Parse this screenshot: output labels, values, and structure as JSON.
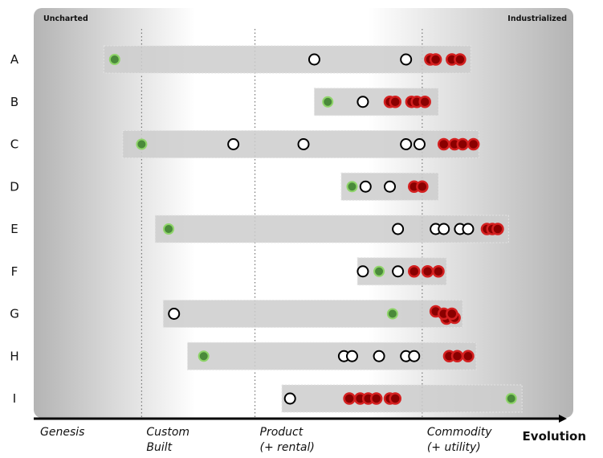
{
  "corner_labels": {
    "left": "Uncharted",
    "right": "Industrialized"
  },
  "axis": {
    "title": "Evolution",
    "stages": [
      {
        "name": "genesis",
        "lines": [
          "Genesis"
        ],
        "position": 0.0
      },
      {
        "name": "custom-built",
        "lines": [
          "Custom",
          "Built"
        ],
        "position": 0.2
      },
      {
        "name": "product",
        "lines": [
          "Product",
          "(+ rental)"
        ],
        "position": 0.41
      },
      {
        "name": "commodity",
        "lines": [
          "Commodity",
          "(+ utility)"
        ],
        "position": 0.72
      }
    ]
  },
  "colors": {
    "white": "#ffffff",
    "green": "#4a8a3a",
    "green_ring": "#8fd46a",
    "red": "#d42020",
    "red_dark": "#8a0000"
  },
  "rows": [
    {
      "label": "A",
      "range": [
        0.13,
        0.81
      ],
      "points": [
        {
          "x": 0.15,
          "type": "green"
        },
        {
          "x": 0.52,
          "type": "white"
        },
        {
          "x": 0.69,
          "type": "white"
        },
        {
          "x": 0.735,
          "type": "red"
        },
        {
          "x": 0.745,
          "type": "red"
        },
        {
          "x": 0.775,
          "type": "red"
        },
        {
          "x": 0.79,
          "type": "red"
        }
      ]
    },
    {
      "label": "B",
      "range": [
        0.52,
        0.75
      ],
      "points": [
        {
          "x": 0.545,
          "type": "green"
        },
        {
          "x": 0.61,
          "type": "white"
        },
        {
          "x": 0.66,
          "type": "red"
        },
        {
          "x": 0.67,
          "type": "red"
        },
        {
          "x": 0.7,
          "type": "red"
        },
        {
          "x": 0.71,
          "type": "red"
        },
        {
          "x": 0.725,
          "type": "red"
        }
      ]
    },
    {
      "label": "C",
      "range": [
        0.165,
        0.825
      ],
      "points": [
        {
          "x": 0.2,
          "type": "green"
        },
        {
          "x": 0.37,
          "type": "white"
        },
        {
          "x": 0.5,
          "type": "white"
        },
        {
          "x": 0.69,
          "type": "white"
        },
        {
          "x": 0.715,
          "type": "white"
        },
        {
          "x": 0.76,
          "type": "red"
        },
        {
          "x": 0.78,
          "type": "red"
        },
        {
          "x": 0.795,
          "type": "red"
        },
        {
          "x": 0.815,
          "type": "red"
        }
      ]
    },
    {
      "label": "D",
      "range": [
        0.57,
        0.75
      ],
      "points": [
        {
          "x": 0.59,
          "type": "green"
        },
        {
          "x": 0.615,
          "type": "white"
        },
        {
          "x": 0.66,
          "type": "white"
        },
        {
          "x": 0.705,
          "type": "red"
        },
        {
          "x": 0.72,
          "type": "red"
        }
      ]
    },
    {
      "label": "E",
      "range": [
        0.225,
        0.88
      ],
      "points": [
        {
          "x": 0.25,
          "type": "green"
        },
        {
          "x": 0.675,
          "type": "white"
        },
        {
          "x": 0.745,
          "type": "white"
        },
        {
          "x": 0.76,
          "type": "white"
        },
        {
          "x": 0.79,
          "type": "white"
        },
        {
          "x": 0.805,
          "type": "white"
        },
        {
          "x": 0.84,
          "type": "red"
        },
        {
          "x": 0.85,
          "type": "red"
        },
        {
          "x": 0.86,
          "type": "red"
        }
      ]
    },
    {
      "label": "F",
      "range": [
        0.6,
        0.765
      ],
      "points": [
        {
          "x": 0.61,
          "type": "white"
        },
        {
          "x": 0.64,
          "type": "green"
        },
        {
          "x": 0.675,
          "type": "white"
        },
        {
          "x": 0.705,
          "type": "red"
        },
        {
          "x": 0.73,
          "type": "red"
        },
        {
          "x": 0.75,
          "type": "red"
        }
      ]
    },
    {
      "label": "G",
      "range": [
        0.24,
        0.795
      ],
      "points": [
        {
          "x": 0.26,
          "type": "white"
        },
        {
          "x": 0.665,
          "type": "green"
        },
        {
          "x": 0.745,
          "type": "red"
        },
        {
          "x": 0.765,
          "type": "red"
        },
        {
          "x": 0.78,
          "type": "red"
        },
        {
          "x": 0.76,
          "type": "red"
        },
        {
          "x": 0.775,
          "type": "red"
        }
      ]
    },
    {
      "label": "H",
      "range": [
        0.285,
        0.82
      ],
      "points": [
        {
          "x": 0.315,
          "type": "green"
        },
        {
          "x": 0.575,
          "type": "white"
        },
        {
          "x": 0.59,
          "type": "white"
        },
        {
          "x": 0.64,
          "type": "white"
        },
        {
          "x": 0.69,
          "type": "white"
        },
        {
          "x": 0.705,
          "type": "white"
        },
        {
          "x": 0.77,
          "type": "red"
        },
        {
          "x": 0.785,
          "type": "red"
        },
        {
          "x": 0.805,
          "type": "red"
        }
      ]
    },
    {
      "label": "I",
      "range": [
        0.46,
        0.905
      ],
      "points": [
        {
          "x": 0.475,
          "type": "white"
        },
        {
          "x": 0.585,
          "type": "red"
        },
        {
          "x": 0.605,
          "type": "red"
        },
        {
          "x": 0.62,
          "type": "red"
        },
        {
          "x": 0.635,
          "type": "red"
        },
        {
          "x": 0.66,
          "type": "red"
        },
        {
          "x": 0.67,
          "type": "red"
        },
        {
          "x": 0.885,
          "type": "green"
        }
      ]
    }
  ]
}
